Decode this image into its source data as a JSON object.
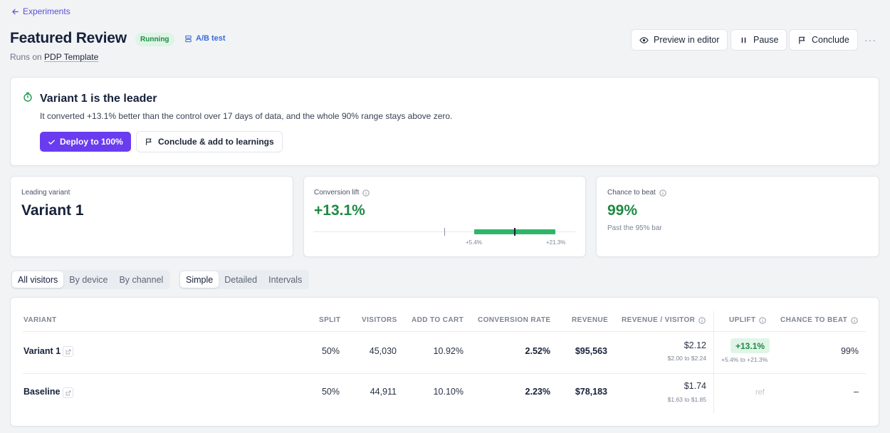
{
  "nav": {
    "back_label": "Experiments"
  },
  "header": {
    "title": "Featured Review",
    "status": "Running",
    "type": "A/B test",
    "runs_on_prefix": "Runs on",
    "template": "PDP Template",
    "buttons": {
      "preview": "Preview in editor",
      "pause": "Pause",
      "conclude": "Conclude"
    },
    "more": "···"
  },
  "leader": {
    "title": "Variant 1 is the leader",
    "description": "It converted +13.1% better than the control over 17 days of data, and the whole 90% range stays above zero.",
    "deploy_label": "Deploy to 100%",
    "conclude_label": "Conclude & add to learnings"
  },
  "stats": {
    "leading_variant": {
      "label": "Leading variant",
      "value": "Variant 1"
    },
    "conversion_lift": {
      "label": "Conversion lift",
      "value": "+13.1%",
      "range_low": "+5.4%",
      "range_high": "+21.3%"
    },
    "chance_to_beat": {
      "label": "Chance to beat",
      "value": "99%",
      "sub": "Past the 95% bar"
    }
  },
  "segments": {
    "audience": [
      "All visitors",
      "By device",
      "By channel"
    ],
    "audience_active": 0,
    "view": [
      "Simple",
      "Detailed",
      "Intervals"
    ],
    "view_active": 0
  },
  "table": {
    "headers": {
      "variant": "VARIANT",
      "split": "SPLIT",
      "visitors": "VISITORS",
      "add_to_cart": "ADD TO CART",
      "conversion_rate": "CONVERSION RATE",
      "revenue": "REVENUE",
      "revenue_per_visitor": "REVENUE / VISITOR",
      "uplift": "UPLIFT",
      "chance_to_beat": "CHANCE TO BEAT"
    },
    "rows": [
      {
        "variant": "Variant 1",
        "split": "50%",
        "visitors": "45,030",
        "add_to_cart": "10.92%",
        "conversion_rate": "2.52%",
        "revenue": "$95,563",
        "rpv": "$2.12",
        "rpv_range": "$2.00 to $2.24",
        "uplift": "+13.1%",
        "uplift_range": "+5.4% to +21.3%",
        "chance_to_beat": "99%"
      },
      {
        "variant": "Baseline",
        "split": "50%",
        "visitors": "44,911",
        "add_to_cart": "10.10%",
        "conversion_rate": "2.23%",
        "revenue": "$78,183",
        "rpv": "$1.74",
        "rpv_range": "$1.63 to $1.85",
        "uplift": "ref",
        "chance_to_beat": "–"
      }
    ]
  },
  "colors": {
    "accent": "#6a3cf0",
    "positive": "#1e8a45",
    "link": "#5b4fd6"
  }
}
